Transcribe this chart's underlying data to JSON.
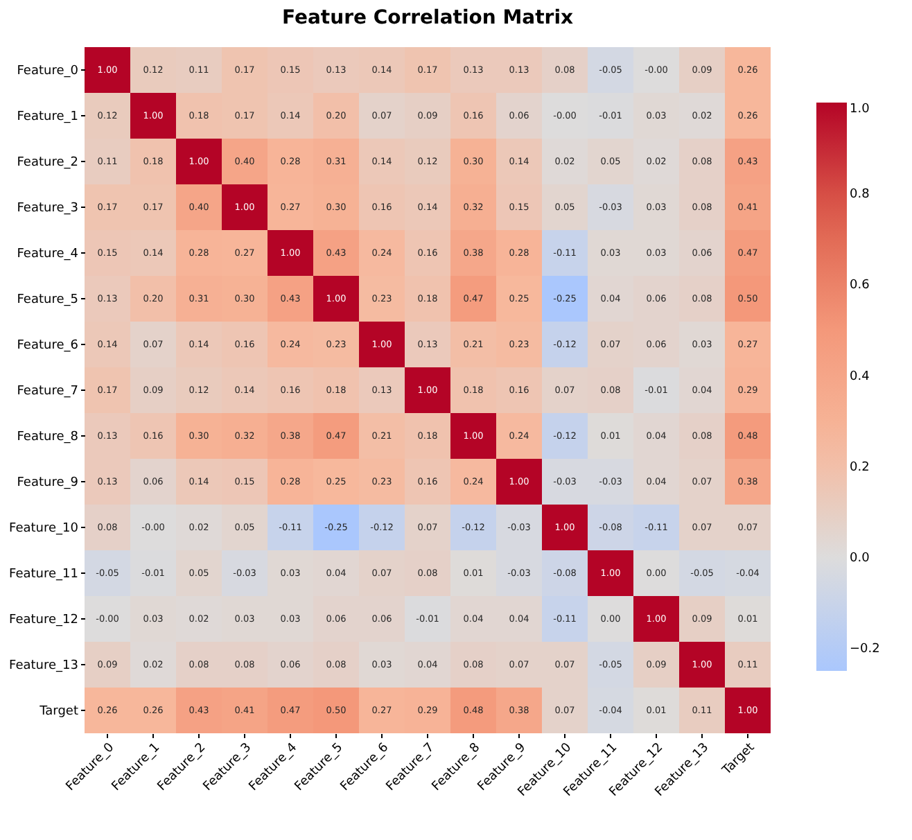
{
  "chart_data": {
    "type": "heatmap",
    "title": "Feature Correlation Matrix",
    "categories": [
      "Feature_0",
      "Feature_1",
      "Feature_2",
      "Feature_3",
      "Feature_4",
      "Feature_5",
      "Feature_6",
      "Feature_7",
      "Feature_8",
      "Feature_9",
      "Feature_10",
      "Feature_11",
      "Feature_12",
      "Feature_13",
      "Target"
    ],
    "y_categories": [
      "Feature_0",
      "Feature_1",
      "Feature_2",
      "Feature_3",
      "Feature_4",
      "Feature_5",
      "Feature_6",
      "Feature_7",
      "Feature_8",
      "Feature_9",
      "Feature_10",
      "Feature_11",
      "Feature_12",
      "Feature_13",
      "Target"
    ],
    "cells": [
      [
        1.0,
        0.12,
        0.11,
        0.17,
        0.15,
        0.13,
        0.14,
        0.17,
        0.13,
        0.13,
        0.08,
        -0.05,
        -0.0,
        0.09,
        0.26
      ],
      [
        0.12,
        1.0,
        0.18,
        0.17,
        0.14,
        0.2,
        0.07,
        0.09,
        0.16,
        0.06,
        -0.0,
        -0.01,
        0.03,
        0.02,
        0.26
      ],
      [
        0.11,
        0.18,
        1.0,
        0.4,
        0.28,
        0.31,
        0.14,
        0.12,
        0.3,
        0.14,
        0.02,
        0.05,
        0.02,
        0.08,
        0.43
      ],
      [
        0.17,
        0.17,
        0.4,
        1.0,
        0.27,
        0.3,
        0.16,
        0.14,
        0.32,
        0.15,
        0.05,
        -0.03,
        0.03,
        0.08,
        0.41
      ],
      [
        0.15,
        0.14,
        0.28,
        0.27,
        1.0,
        0.43,
        0.24,
        0.16,
        0.38,
        0.28,
        -0.11,
        0.03,
        0.03,
        0.06,
        0.47
      ],
      [
        0.13,
        0.2,
        0.31,
        0.3,
        0.43,
        1.0,
        0.23,
        0.18,
        0.47,
        0.25,
        -0.25,
        0.04,
        0.06,
        0.08,
        0.5
      ],
      [
        0.14,
        0.07,
        0.14,
        0.16,
        0.24,
        0.23,
        1.0,
        0.13,
        0.21,
        0.23,
        -0.12,
        0.07,
        0.06,
        0.03,
        0.27
      ],
      [
        0.17,
        0.09,
        0.12,
        0.14,
        0.16,
        0.18,
        0.13,
        1.0,
        0.18,
        0.16,
        0.07,
        0.08,
        -0.01,
        0.04,
        0.29
      ],
      [
        0.13,
        0.16,
        0.3,
        0.32,
        0.38,
        0.47,
        0.21,
        0.18,
        1.0,
        0.24,
        -0.12,
        0.01,
        0.04,
        0.08,
        0.48
      ],
      [
        0.13,
        0.06,
        0.14,
        0.15,
        0.28,
        0.25,
        0.23,
        0.16,
        0.24,
        1.0,
        -0.03,
        -0.03,
        0.04,
        0.07,
        0.38
      ],
      [
        0.08,
        -0.0,
        0.02,
        0.05,
        -0.11,
        -0.25,
        -0.12,
        0.07,
        -0.12,
        -0.03,
        1.0,
        -0.08,
        -0.11,
        0.07,
        0.07
      ],
      [
        -0.05,
        -0.01,
        0.05,
        -0.03,
        0.03,
        0.04,
        0.07,
        0.08,
        0.01,
        -0.03,
        -0.08,
        1.0,
        0.0,
        -0.05,
        -0.04
      ],
      [
        -0.0,
        0.03,
        0.02,
        0.03,
        0.03,
        0.06,
        0.06,
        -0.01,
        0.04,
        0.04,
        -0.11,
        0.0,
        1.0,
        0.09,
        0.01
      ],
      [
        0.09,
        0.02,
        0.08,
        0.08,
        0.06,
        0.08,
        0.03,
        0.04,
        0.08,
        0.07,
        0.07,
        -0.05,
        0.09,
        1.0,
        0.11
      ],
      [
        0.26,
        0.26,
        0.43,
        0.41,
        0.47,
        0.5,
        0.27,
        0.29,
        0.48,
        0.38,
        0.07,
        -0.04,
        0.01,
        0.11,
        1.0
      ]
    ],
    "cell_labels": [
      [
        "1.00",
        "0.12",
        "0.11",
        "0.17",
        "0.15",
        "0.13",
        "0.14",
        "0.17",
        "0.13",
        "0.13",
        "0.08",
        "-0.05",
        "-0.00",
        "0.09",
        "0.26"
      ],
      [
        "0.12",
        "1.00",
        "0.18",
        "0.17",
        "0.14",
        "0.20",
        "0.07",
        "0.09",
        "0.16",
        "0.06",
        "-0.00",
        "-0.01",
        "0.03",
        "0.02",
        "0.26"
      ],
      [
        "0.11",
        "0.18",
        "1.00",
        "0.40",
        "0.28",
        "0.31",
        "0.14",
        "0.12",
        "0.30",
        "0.14",
        "0.02",
        "0.05",
        "0.02",
        "0.08",
        "0.43"
      ],
      [
        "0.17",
        "0.17",
        "0.40",
        "1.00",
        "0.27",
        "0.30",
        "0.16",
        "0.14",
        "0.32",
        "0.15",
        "0.05",
        "-0.03",
        "0.03",
        "0.08",
        "0.41"
      ],
      [
        "0.15",
        "0.14",
        "0.28",
        "0.27",
        "1.00",
        "0.43",
        "0.24",
        "0.16",
        "0.38",
        "0.28",
        "-0.11",
        "0.03",
        "0.03",
        "0.06",
        "0.47"
      ],
      [
        "0.13",
        "0.20",
        "0.31",
        "0.30",
        "0.43",
        "1.00",
        "0.23",
        "0.18",
        "0.47",
        "0.25",
        "-0.25",
        "0.04",
        "0.06",
        "0.08",
        "0.50"
      ],
      [
        "0.14",
        "0.07",
        "0.14",
        "0.16",
        "0.24",
        "0.23",
        "1.00",
        "0.13",
        "0.21",
        "0.23",
        "-0.12",
        "0.07",
        "0.06",
        "0.03",
        "0.27"
      ],
      [
        "0.17",
        "0.09",
        "0.12",
        "0.14",
        "0.16",
        "0.18",
        "0.13",
        "1.00",
        "0.18",
        "0.16",
        "0.07",
        "0.08",
        "-0.01",
        "0.04",
        "0.29"
      ],
      [
        "0.13",
        "0.16",
        "0.30",
        "0.32",
        "0.38",
        "0.47",
        "0.21",
        "0.18",
        "1.00",
        "0.24",
        "-0.12",
        "0.01",
        "0.04",
        "0.08",
        "0.48"
      ],
      [
        "0.13",
        "0.06",
        "0.14",
        "0.15",
        "0.28",
        "0.25",
        "0.23",
        "0.16",
        "0.24",
        "1.00",
        "-0.03",
        "-0.03",
        "0.04",
        "0.07",
        "0.38"
      ],
      [
        "0.08",
        "-0.00",
        "0.02",
        "0.05",
        "-0.11",
        "-0.25",
        "-0.12",
        "0.07",
        "-0.12",
        "-0.03",
        "1.00",
        "-0.08",
        "-0.11",
        "0.07",
        "0.07"
      ],
      [
        "-0.05",
        "-0.01",
        "0.05",
        "-0.03",
        "0.03",
        "0.04",
        "0.07",
        "0.08",
        "0.01",
        "-0.03",
        "-0.08",
        "1.00",
        "0.00",
        "-0.05",
        "-0.04"
      ],
      [
        "-0.00",
        "0.03",
        "0.02",
        "0.03",
        "0.03",
        "0.06",
        "0.06",
        "-0.01",
        "0.04",
        "0.04",
        "-0.11",
        "0.00",
        "1.00",
        "0.09",
        "0.01"
      ],
      [
        "0.09",
        "0.02",
        "0.08",
        "0.08",
        "0.06",
        "0.08",
        "0.03",
        "0.04",
        "0.08",
        "0.07",
        "0.07",
        "-0.05",
        "0.09",
        "1.00",
        "0.11"
      ],
      [
        "0.26",
        "0.26",
        "0.43",
        "0.41",
        "0.47",
        "0.50",
        "0.27",
        "0.29",
        "0.48",
        "0.38",
        "0.07",
        "-0.04",
        "0.01",
        "0.11",
        "1.00"
      ]
    ],
    "clim": [
      -0.25,
      1.0
    ],
    "cticks": [
      {
        "value": -0.2,
        "label": "−0.2"
      },
      {
        "value": 0,
        "label": "0.0"
      },
      {
        "value": 0.2,
        "label": "0.2"
      },
      {
        "value": 0.4,
        "label": "0.4"
      },
      {
        "value": 0.6,
        "label": "0.6"
      },
      {
        "value": 0.8,
        "label": "0.8"
      },
      {
        "value": 1,
        "label": "1.0"
      }
    ],
    "data_labels": true
  }
}
